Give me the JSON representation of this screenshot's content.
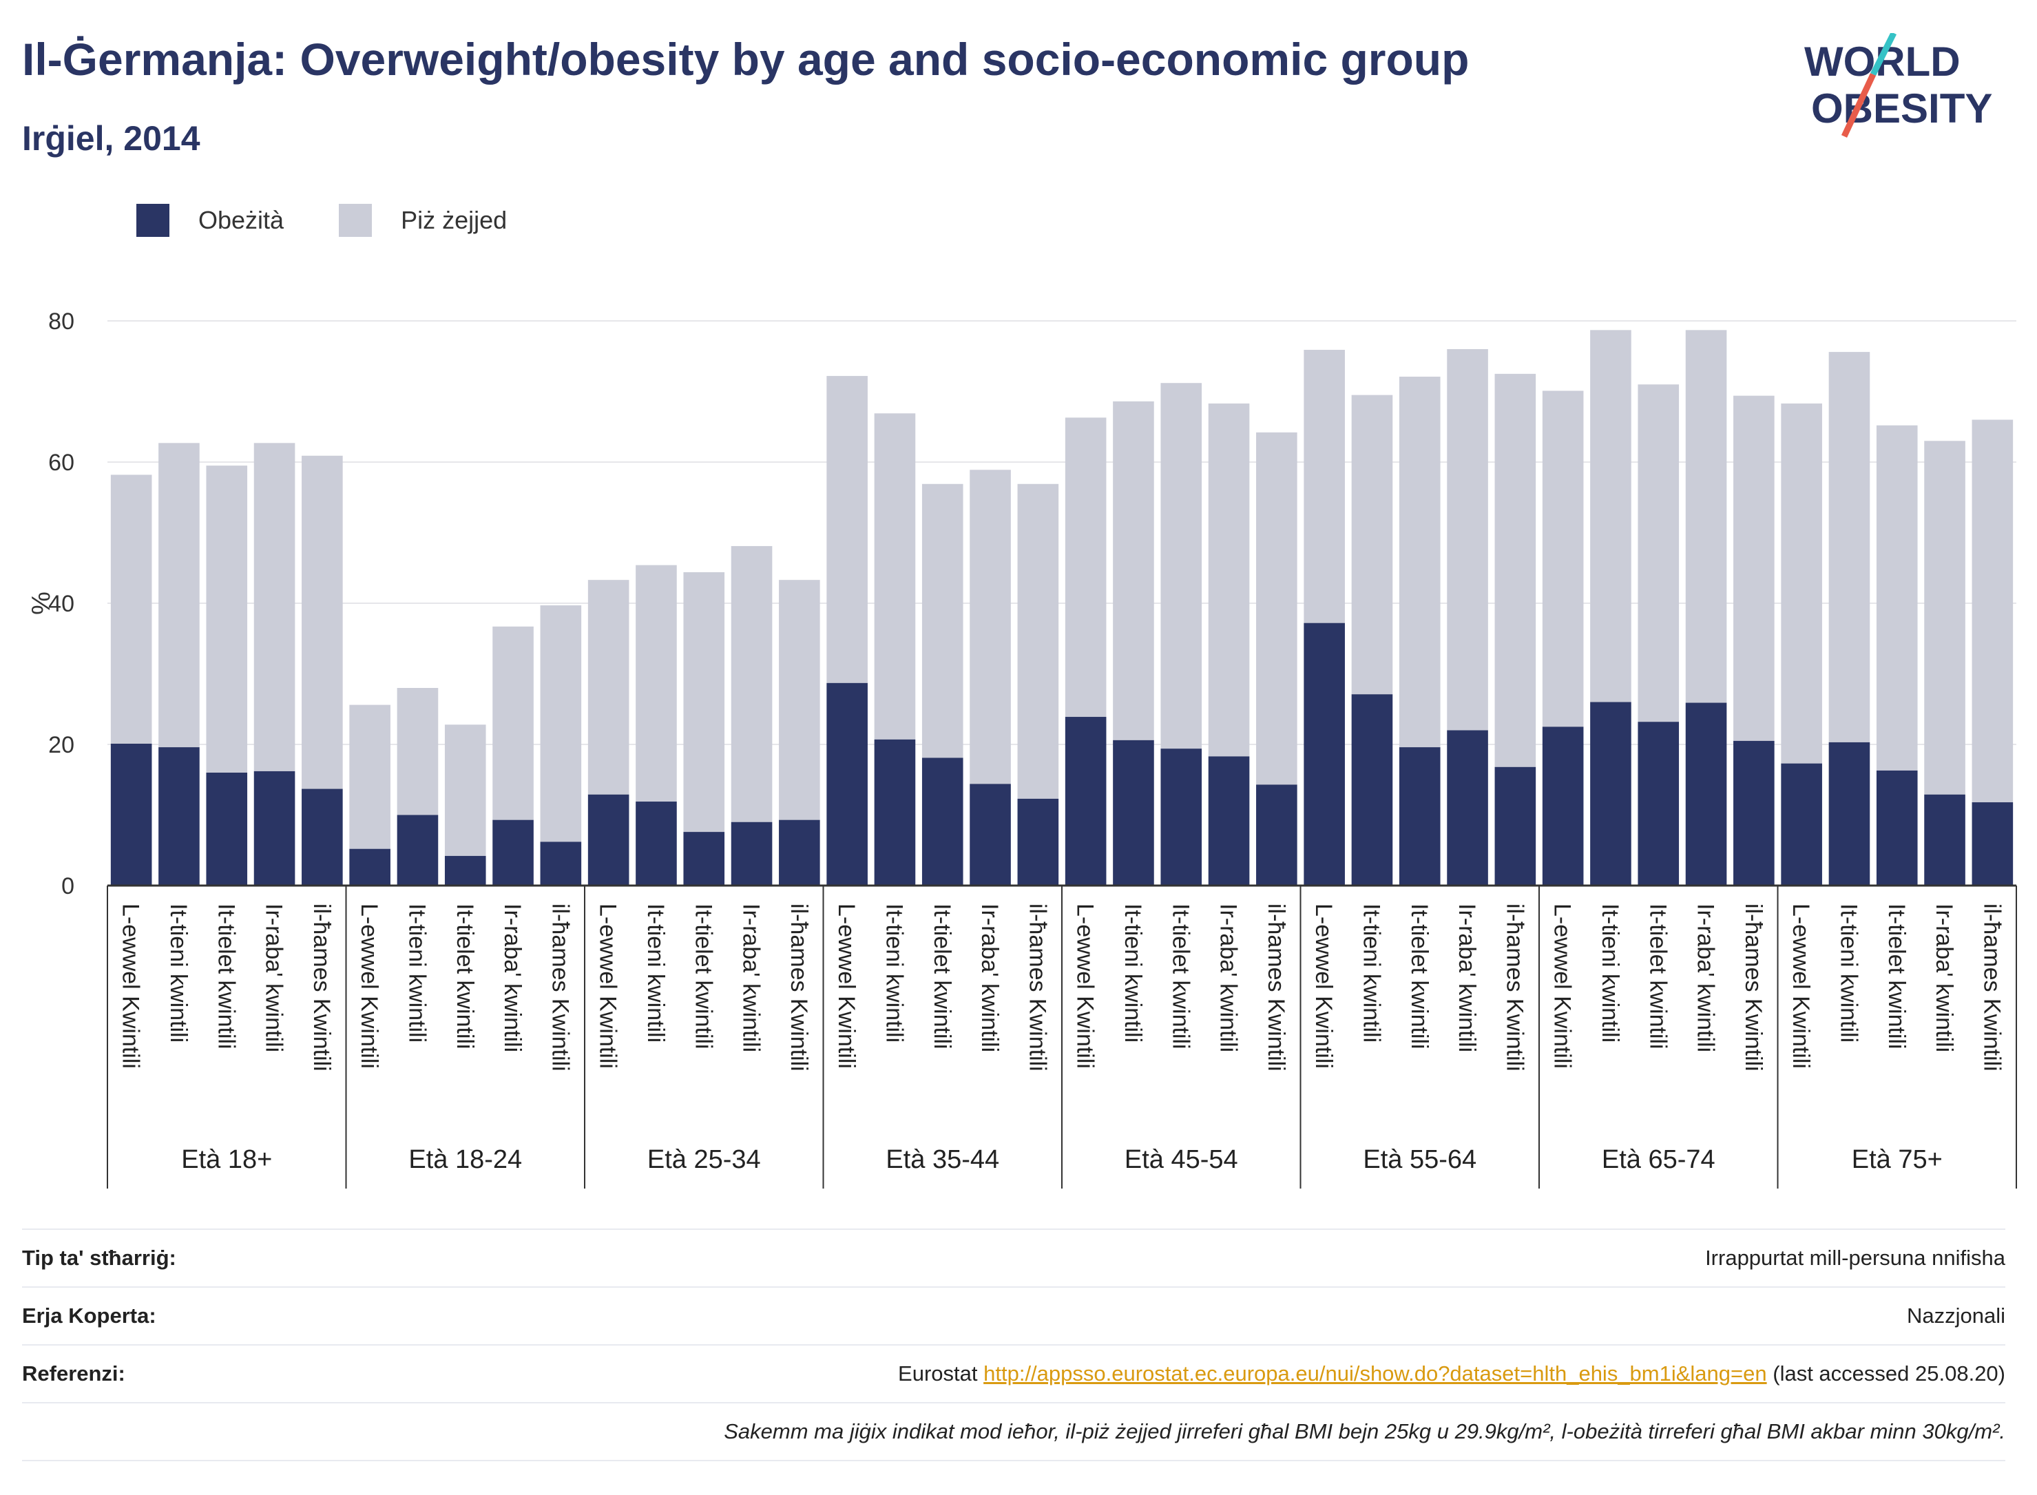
{
  "header": {
    "title": "Il-Ġermanja: Overweight/obesity by age and socio-economic group",
    "subtitle": "Irġiel, 2014",
    "logo_line1": "WORLD",
    "logo_line2": "OBESITY"
  },
  "legend": {
    "obese_label": "Obeżità",
    "overweight_label": "Piż żejjed"
  },
  "colors": {
    "obese": "#2a3564",
    "overweight": "#cbcdd8",
    "axis": "#333333",
    "grid": "#e6e6ea",
    "logo_slash_red": "#e85c4a",
    "logo_slash_teal": "#35c2c6"
  },
  "chart_data": {
    "type": "bar",
    "stacked": true,
    "ylabel": "%",
    "ylim": [
      0,
      80
    ],
    "yticks": [
      0,
      20,
      40,
      60,
      80
    ],
    "grid": true,
    "legend_position": "top-left",
    "quintile_labels": [
      "L-ewwel Kwintili",
      "It-tieni kwintili",
      "It-tielet kwintili",
      "Ir-raba' kwintili",
      "il-ħames Kwintili"
    ],
    "groups": [
      "Età 18+",
      "Età 18-24",
      "Età 25-34",
      "Età 35-44",
      "Età 45-54",
      "Età 55-64",
      "Età 65-74",
      "Età 75+"
    ],
    "series": [
      {
        "name": "Obeżità",
        "values": [
          [
            20.1,
            19.6,
            16.0,
            16.2,
            13.7
          ],
          [
            5.2,
            10.0,
            4.2,
            9.3,
            6.2
          ],
          [
            12.9,
            11.9,
            7.6,
            9.0,
            9.3
          ],
          [
            28.7,
            20.7,
            18.1,
            14.4,
            12.3
          ],
          [
            23.9,
            20.6,
            19.4,
            18.3,
            14.3
          ],
          [
            37.2,
            27.1,
            19.6,
            22.0,
            16.8
          ],
          [
            22.5,
            26.0,
            23.2,
            25.9,
            20.5
          ],
          [
            17.3,
            20.3,
            16.3,
            12.9,
            11.8
          ]
        ]
      },
      {
        "name": "Piż żejjed",
        "values": [
          [
            38.1,
            43.1,
            43.5,
            46.5,
            47.2
          ],
          [
            20.4,
            18.0,
            18.6,
            27.4,
            33.5
          ],
          [
            30.4,
            33.5,
            36.8,
            39.1,
            34.0
          ],
          [
            43.5,
            46.2,
            38.8,
            44.5,
            44.6
          ],
          [
            42.4,
            48.0,
            51.8,
            50.0,
            49.9
          ],
          [
            38.7,
            42.4,
            52.5,
            54.0,
            55.7
          ],
          [
            47.6,
            52.7,
            47.8,
            52.8,
            48.9
          ],
          [
            51.0,
            55.3,
            48.9,
            50.1,
            54.2
          ]
        ]
      }
    ]
  },
  "footer": {
    "rows": [
      {
        "label": "Tip ta' stħarriġ:",
        "value": "Irrappurtat mill-persuna nnifisha"
      },
      {
        "label": "Erja Koperta:",
        "value": "Nazzjonali"
      }
    ],
    "ref_label": "Referenzi:",
    "ref_source": "Eurostat",
    "ref_url": "http://appsso.eurostat.ec.europa.eu/nui/show.do?dataset=hlth_ehis_bm1i&lang=en",
    "ref_accessed": "(last accessed 25.08.20)",
    "note": "Sakemm ma jiġix indikat mod ieħor, il-piż żejjed jirreferi għal BMI bejn 25kg u 29.9kg/m², l-obeżità tirreferi għal BMI akbar minn 30kg/m²."
  }
}
